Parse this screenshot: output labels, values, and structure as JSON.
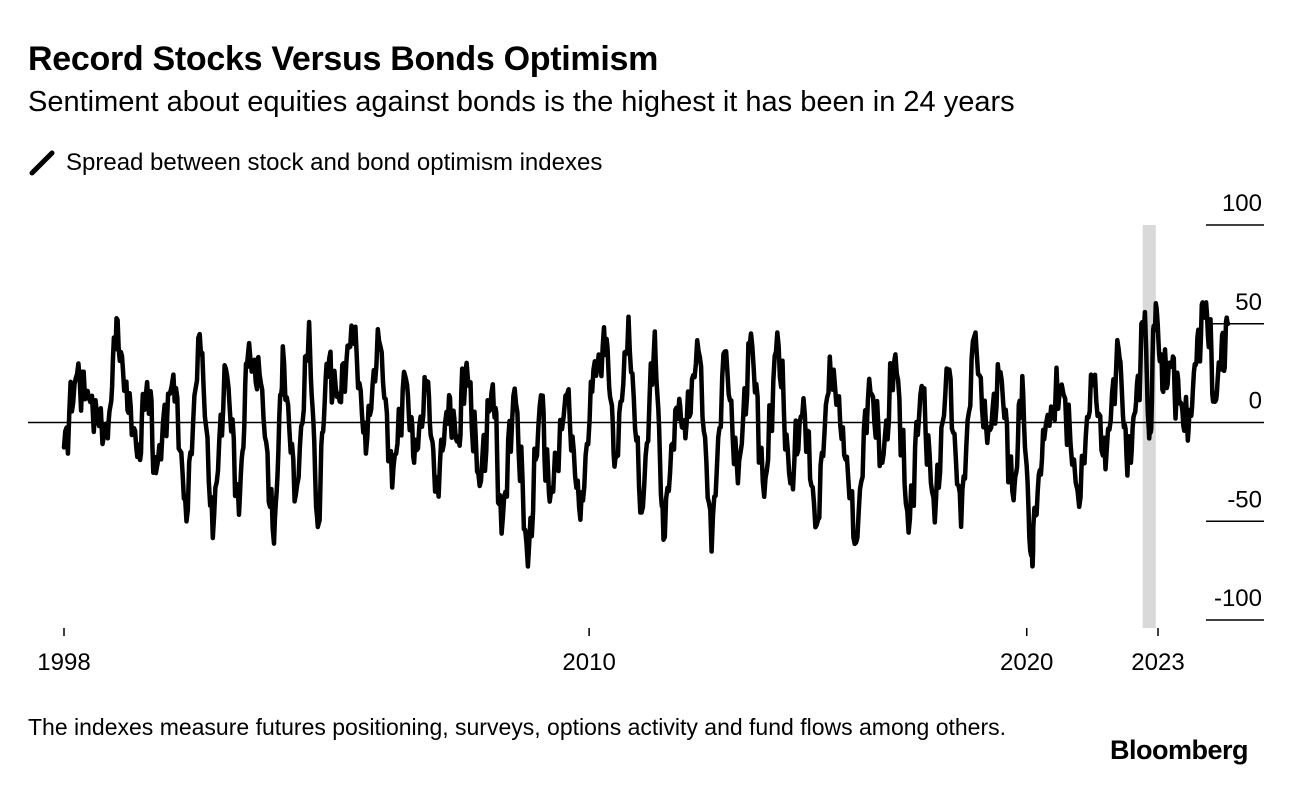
{
  "header": {
    "title": "Record Stocks Versus Bonds Optimism",
    "subtitle": "Sentiment about equities against bonds is the highest it has been in 24 years"
  },
  "footer": {
    "note": "The indexes measure futures positioning, surveys, options activity and fund flows among others.",
    "logo_text": "Bloomberg"
  },
  "colors": {
    "line": "#000000",
    "highlight": "#d9d9d9",
    "zero_line": "#000000"
  },
  "chart_data": {
    "type": "line",
    "title": "Record Stocks Versus Bonds Optimism",
    "subtitle": "Sentiment about equities against bonds is the highest it has been in 24 years",
    "xlabel": "",
    "ylabel": "",
    "xlim": [
      1998,
      2024.6
    ],
    "ylim": [
      -100,
      100
    ],
    "y_ticks": [
      100,
      50,
      0,
      -50,
      -100
    ],
    "y_tick_labels": [
      "100",
      "50",
      "0",
      "-50",
      "-100"
    ],
    "x_ticks": [
      1998,
      2010,
      2020,
      2023
    ],
    "x_tick_labels": [
      "1998",
      "2010",
      "2020",
      "2023"
    ],
    "highlight_band": [
      2022.65,
      2022.95
    ],
    "series": [
      {
        "name": "Spread between stock and bond optimism indexes",
        "x": [
          1998.0,
          1998.3,
          1998.6,
          1999.0,
          1999.2,
          1999.45,
          1999.7,
          1999.9,
          2000.1,
          2000.5,
          2000.8,
          2001.1,
          2001.4,
          2001.7,
          2002.0,
          2002.2,
          2002.5,
          2002.8,
          2003.0,
          2003.3,
          2003.6,
          2003.8,
          2004.0,
          2004.3,
          2004.6,
          2004.9,
          2005.2,
          2005.5,
          2005.8,
          2006.0,
          2006.3,
          2006.5,
          2006.8,
          2007.0,
          2007.2,
          2007.5,
          2007.8,
          2008.0,
          2008.3,
          2008.6,
          2008.9,
          2009.1,
          2009.5,
          2009.8,
          2010.1,
          2010.4,
          2010.6,
          2010.9,
          2011.2,
          2011.5,
          2011.7,
          2012.0,
          2012.2,
          2012.5,
          2012.8,
          2013.1,
          2013.4,
          2013.7,
          2014.0,
          2014.3,
          2014.6,
          2014.9,
          2015.2,
          2015.5,
          2015.8,
          2016.1,
          2016.4,
          2016.7,
          2017.0,
          2017.3,
          2017.6,
          2017.9,
          2018.2,
          2018.5,
          2018.8,
          2019.1,
          2019.4,
          2019.7,
          2019.9,
          2020.1,
          2020.15,
          2020.4,
          2020.8,
          2021.2,
          2021.5,
          2021.8,
          2022.1,
          2022.3,
          2022.5,
          2022.7,
          2022.8,
          2022.95,
          2023.1,
          2023.3,
          2023.5,
          2023.7,
          2023.9,
          2024.1,
          2024.3,
          2024.45,
          2024.6
        ],
        "values": [
          -12,
          25,
          10,
          -8,
          50,
          10,
          -15,
          20,
          -25,
          25,
          -48,
          48,
          -55,
          30,
          -45,
          35,
          20,
          -62,
          35,
          -40,
          48,
          -55,
          30,
          12,
          50,
          -12,
          45,
          -30,
          25,
          -20,
          20,
          -35,
          10,
          -10,
          30,
          -32,
          20,
          -55,
          18,
          -72,
          15,
          -40,
          15,
          -50,
          25,
          40,
          -22,
          50,
          -48,
          45,
          -58,
          10,
          -5,
          40,
          -62,
          38,
          -30,
          45,
          -38,
          45,
          -32,
          10,
          -55,
          30,
          -5,
          -62,
          22,
          -20,
          35,
          -55,
          20,
          -48,
          30,
          -50,
          45,
          -10,
          25,
          -40,
          20,
          -70,
          -55,
          -5,
          20,
          -40,
          25,
          -20,
          40,
          -25,
          10,
          55,
          -10,
          60,
          20,
          30,
          10,
          -5,
          40,
          60,
          10,
          35,
          50
        ]
      }
    ]
  }
}
